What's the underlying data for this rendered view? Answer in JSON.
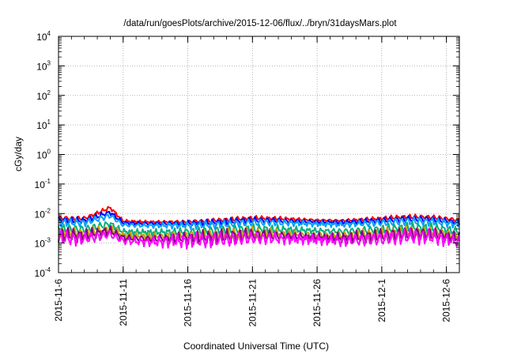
{
  "chart_data": {
    "type": "line",
    "title": "/data/run/goesPlots/archive/2015-12-06/flux/../bryn/31daysMars.plot",
    "xlabel": "Coordinated Universal Time (UTC)",
    "ylabel": "cGy/day",
    "y_scale": "log",
    "ylim": [
      0.0001,
      10000
    ],
    "xlim": [
      "2015-11-06",
      "2015-12-07"
    ],
    "grid": true,
    "legend": "none",
    "y_ticks": [
      {
        "base": "10",
        "exp": "-4"
      },
      {
        "base": "10",
        "exp": "-3"
      },
      {
        "base": "10",
        "exp": "-2"
      },
      {
        "base": "10",
        "exp": "-1"
      },
      {
        "base": "10",
        "exp": "0"
      },
      {
        "base": "10",
        "exp": "1"
      },
      {
        "base": "10",
        "exp": "2"
      },
      {
        "base": "10",
        "exp": "3"
      },
      {
        "base": "10",
        "exp": "4"
      }
    ],
    "x_ticks": [
      "2015-11-6",
      "2015-11-11",
      "2015-11-16",
      "2015-11-21",
      "2015-11-26",
      "2015-12-1",
      "2015-12-6"
    ],
    "series": [
      {
        "color": "#ff0000",
        "x": [
          "2015-11-06",
          "2015-11-08",
          "2015-11-10",
          "2015-11-11",
          "2015-11-13",
          "2015-11-16",
          "2015-11-18",
          "2015-11-21",
          "2015-11-23",
          "2015-11-26",
          "2015-11-28",
          "2015-12-01",
          "2015-12-03",
          "2015-12-05",
          "2015-12-07"
        ],
        "values": [
          0.007,
          0.0068,
          0.016,
          0.0055,
          0.0052,
          0.0053,
          0.0058,
          0.007,
          0.0068,
          0.006,
          0.0058,
          0.0068,
          0.0078,
          0.0075,
          0.006
        ]
      },
      {
        "color": "#0000ff",
        "x": [
          "2015-11-06",
          "2015-11-08",
          "2015-11-10",
          "2015-11-11",
          "2015-11-13",
          "2015-11-16",
          "2015-11-18",
          "2015-11-21",
          "2015-11-23",
          "2015-11-26",
          "2015-11-28",
          "2015-12-01",
          "2015-12-03",
          "2015-12-05",
          "2015-12-07"
        ],
        "values": [
          0.006,
          0.0058,
          0.011,
          0.0048,
          0.0046,
          0.0047,
          0.005,
          0.006,
          0.0058,
          0.0052,
          0.005,
          0.0058,
          0.0066,
          0.0064,
          0.005
        ]
      },
      {
        "color": "#00a0ff",
        "x": [
          "2015-11-06",
          "2015-11-08",
          "2015-11-10",
          "2015-11-11",
          "2015-11-13",
          "2015-11-16",
          "2015-11-18",
          "2015-11-21",
          "2015-11-23",
          "2015-11-26",
          "2015-11-28",
          "2015-12-01",
          "2015-12-03",
          "2015-12-05",
          "2015-12-07"
        ],
        "values": [
          0.005,
          0.0049,
          0.0085,
          0.0041,
          0.0039,
          0.004,
          0.0042,
          0.005,
          0.0049,
          0.0044,
          0.0042,
          0.0049,
          0.0055,
          0.0053,
          0.0042
        ]
      },
      {
        "color": "#00b080",
        "x": [
          "2015-11-06",
          "2015-11-08",
          "2015-11-10",
          "2015-11-11",
          "2015-11-13",
          "2015-11-16",
          "2015-11-18",
          "2015-11-21",
          "2015-11-23",
          "2015-11-26",
          "2015-11-28",
          "2015-12-01",
          "2015-12-03",
          "2015-12-05",
          "2015-12-07"
        ],
        "values": [
          0.003,
          0.0029,
          0.0045,
          0.0024,
          0.0023,
          0.0024,
          0.0026,
          0.003,
          0.0029,
          0.0026,
          0.0025,
          0.0029,
          0.0033,
          0.0032,
          0.0025
        ]
      },
      {
        "color": "#c0a000",
        "x": [
          "2015-11-06",
          "2015-11-08",
          "2015-11-10",
          "2015-11-11",
          "2015-11-13",
          "2015-11-16",
          "2015-11-18",
          "2015-11-21",
          "2015-11-23",
          "2015-11-26",
          "2015-11-28",
          "2015-12-01",
          "2015-12-03",
          "2015-12-05",
          "2015-12-07"
        ],
        "values": [
          0.0022,
          0.0021,
          0.003,
          0.0018,
          0.0017,
          0.0018,
          0.0019,
          0.0022,
          0.0021,
          0.0019,
          0.0018,
          0.0021,
          0.0024,
          0.0023,
          0.0018
        ]
      },
      {
        "color": "#800080",
        "x": [
          "2015-11-06",
          "2015-11-08",
          "2015-11-10",
          "2015-11-11",
          "2015-11-13",
          "2015-11-16",
          "2015-11-18",
          "2015-11-21",
          "2015-11-23",
          "2015-11-26",
          "2015-11-28",
          "2015-12-01",
          "2015-12-03",
          "2015-12-05",
          "2015-12-07"
        ],
        "values": [
          0.0019,
          0.0018,
          0.0026,
          0.0015,
          0.0014,
          0.0015,
          0.0016,
          0.0019,
          0.0018,
          0.0016,
          0.0015,
          0.0018,
          0.0021,
          0.002,
          0.0015
        ]
      },
      {
        "color": "#ff00ff",
        "x": [
          "2015-11-06",
          "2015-11-08",
          "2015-11-10",
          "2015-11-11",
          "2015-11-13",
          "2015-11-16",
          "2015-11-18",
          "2015-11-21",
          "2015-11-23",
          "2015-11-26",
          "2015-11-28",
          "2015-12-01",
          "2015-12-03",
          "2015-12-05",
          "2015-12-07"
        ],
        "values": [
          0.0015,
          0.0014,
          0.002,
          0.0012,
          0.0011,
          0.0012,
          0.0013,
          0.0015,
          0.0014,
          0.0013,
          0.0012,
          0.0014,
          0.0017,
          0.0016,
          0.0011
        ]
      }
    ]
  }
}
